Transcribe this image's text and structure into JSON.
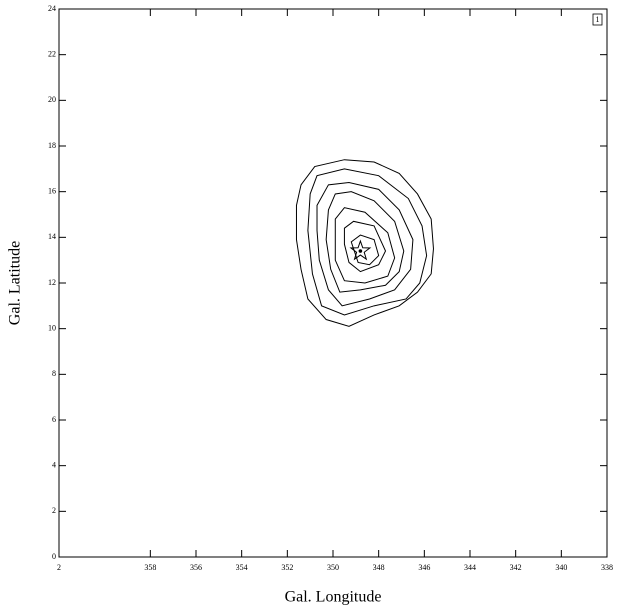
{
  "chart_data": {
    "type": "contour",
    "x_label": "Gal. Longitude",
    "y_label": "Gal. Latitude",
    "panel_label": "1",
    "xlim": [
      362,
      338
    ],
    "ylim": [
      0,
      24
    ],
    "xticks": [
      {
        "value": 362,
        "label": "2"
      },
      358,
      356,
      354,
      352,
      350,
      348,
      346,
      344,
      342,
      340,
      338
    ],
    "yticks": [
      0,
      2,
      4,
      6,
      8,
      10,
      12,
      14,
      16,
      18,
      20,
      22,
      24
    ],
    "color": "#000000",
    "contours": [
      {
        "x": [
          351.6,
          351.4,
          350.8,
          349.5,
          348.2,
          347.1,
          346.3,
          345.7,
          345.6,
          345.7,
          346.3,
          347.1,
          348.2,
          349.3,
          350.3,
          351.1,
          351.4,
          351.6
        ],
        "y": [
          15.4,
          16.3,
          17.1,
          17.4,
          17.3,
          16.8,
          15.9,
          14.8,
          13.5,
          12.4,
          11.6,
          11.0,
          10.6,
          10.1,
          10.4,
          11.3,
          12.6,
          13.9
        ]
      },
      {
        "x": [
          351.0,
          350.7,
          349.5,
          348.0,
          346.7,
          346.1,
          345.9,
          346.2,
          346.8,
          348.2,
          349.5,
          350.5,
          350.9,
          351.1
        ],
        "y": [
          15.9,
          16.7,
          17.0,
          16.7,
          15.7,
          14.5,
          13.2,
          12.0,
          11.3,
          11.0,
          10.6,
          11.0,
          12.4,
          14.3
        ]
      },
      {
        "x": [
          350.7,
          350.2,
          349.3,
          348.0,
          347.1,
          346.5,
          346.6,
          347.3,
          348.4,
          349.6,
          350.2,
          350.6,
          350.7
        ],
        "y": [
          15.4,
          16.3,
          16.4,
          16.1,
          15.2,
          13.9,
          12.6,
          11.7,
          11.3,
          11.0,
          11.7,
          13.0,
          14.3
        ]
      },
      {
        "x": [
          350.2,
          349.9,
          349.2,
          348.2,
          347.3,
          346.9,
          347.1,
          347.7,
          348.8,
          349.7,
          350.1,
          350.3
        ],
        "y": [
          15.2,
          15.9,
          16.0,
          15.6,
          14.7,
          13.4,
          12.5,
          11.9,
          11.7,
          11.6,
          12.6,
          13.9
        ]
      },
      {
        "x": [
          349.9,
          349.5,
          348.6,
          347.6,
          347.3,
          347.6,
          348.6,
          349.5,
          349.9
        ],
        "y": [
          14.8,
          15.3,
          15.1,
          14.2,
          13.1,
          12.3,
          12.0,
          12.1,
          13.0
        ]
      },
      {
        "x": [
          349.5,
          349.1,
          348.2,
          347.7,
          348.0,
          348.8,
          349.3,
          349.5
        ],
        "y": [
          14.4,
          14.7,
          14.5,
          13.4,
          12.8,
          12.5,
          12.9,
          13.7
        ]
      },
      {
        "x": [
          349.2,
          348.8,
          348.2,
          348.0,
          348.4,
          348.9
        ],
        "y": [
          13.8,
          14.1,
          13.9,
          13.2,
          12.8,
          12.9
        ]
      }
    ],
    "source": {
      "x": 348.8,
      "y": 13.4
    }
  }
}
